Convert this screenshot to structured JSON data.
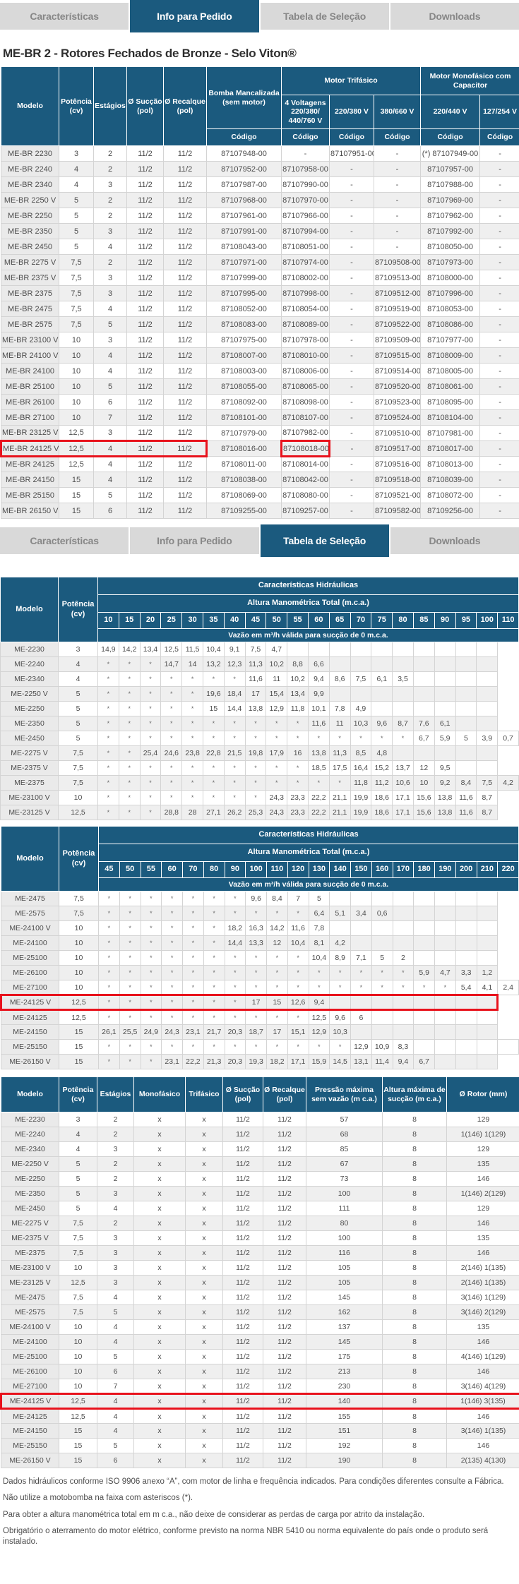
{
  "accent_color": "#1B5A7E",
  "highlight_color": "#E8121C",
  "tab_bar": {
    "tabs": [
      "Características",
      "Info para Pedido",
      "Tabela de Seleção",
      "Downloads"
    ]
  },
  "active_tab_top": "Info para Pedido",
  "active_tab_middle": "Tabela de Seleção",
  "page_title": "ME-BR 2 - Rotores Fechados de Bronze - Selo Viton®",
  "order_table": {
    "headers": {
      "modelo": "Modelo",
      "potencia": "Potência (cv)",
      "estagios": "Estágios",
      "succao": "Ø Sucção (pol)",
      "recalque": "Ø Recalque (pol)",
      "bomba": "Bomba Mancalizada (sem motor)",
      "trifasico": "Motor Trifásico",
      "monofasico": "Motor Monofásico com Capacitor",
      "v4": "4 Voltagens 220/380/ 440/760 V",
      "v220_380": "220/380 V",
      "v380_660": "380/660 V",
      "v220_440": "220/440 V",
      "v127_254": "127/254 V",
      "codigo": "Código"
    },
    "highlight_model": "ME-BR 24125 V",
    "rows": [
      [
        "ME-BR 2230",
        "3",
        "2",
        "11/2",
        "11/2",
        "87107948-00",
        "-",
        "87107951-00",
        "-",
        "(*) 87107949-00",
        "-"
      ],
      [
        "ME-BR 2240",
        "4",
        "2",
        "11/2",
        "11/2",
        "87107952-00",
        "87107958-00",
        "-",
        "-",
        "87107957-00",
        "-"
      ],
      [
        "ME-BR 2340",
        "4",
        "3",
        "11/2",
        "11/2",
        "87107987-00",
        "87107990-00",
        "-",
        "-",
        "87107988-00",
        "-"
      ],
      [
        "ME-BR 2250 V",
        "5",
        "2",
        "11/2",
        "11/2",
        "87107968-00",
        "87107970-00",
        "-",
        "-",
        "87107969-00",
        "-"
      ],
      [
        "ME-BR 2250",
        "5",
        "2",
        "11/2",
        "11/2",
        "87107961-00",
        "87107966-00",
        "-",
        "-",
        "87107962-00",
        "-"
      ],
      [
        "ME-BR 2350",
        "5",
        "3",
        "11/2",
        "11/2",
        "87107991-00",
        "87107994-00",
        "-",
        "-",
        "87107992-00",
        "-"
      ],
      [
        "ME-BR 2450",
        "5",
        "4",
        "11/2",
        "11/2",
        "87108043-00",
        "87108051-00",
        "-",
        "-",
        "87108050-00",
        "-"
      ],
      [
        "ME-BR 2275 V",
        "7,5",
        "2",
        "11/2",
        "11/2",
        "87107971-00",
        "87107974-00",
        "-",
        "87109508-00",
        "87107973-00",
        "-"
      ],
      [
        "ME-BR 2375 V",
        "7,5",
        "3",
        "11/2",
        "11/2",
        "87107999-00",
        "87108002-00",
        "-",
        "87109513-00",
        "87108000-00",
        "-"
      ],
      [
        "ME-BR 2375",
        "7,5",
        "3",
        "11/2",
        "11/2",
        "87107995-00",
        "87107998-00",
        "-",
        "87109512-00",
        "87107996-00",
        "-"
      ],
      [
        "ME-BR 2475",
        "7,5",
        "4",
        "11/2",
        "11/2",
        "87108052-00",
        "87108054-00",
        "-",
        "87109519-00",
        "87108053-00",
        "-"
      ],
      [
        "ME-BR 2575",
        "7,5",
        "5",
        "11/2",
        "11/2",
        "87108083-00",
        "87108089-00",
        "-",
        "87109522-00",
        "87108086-00",
        "-"
      ],
      [
        "ME-BR 23100 V",
        "10",
        "3",
        "11/2",
        "11/2",
        "87107975-00",
        "87107978-00",
        "-",
        "87109509-00",
        "87107977-00",
        "-"
      ],
      [
        "ME-BR 24100 V",
        "10",
        "4",
        "11/2",
        "11/2",
        "87108007-00",
        "87108010-00",
        "-",
        "87109515-00",
        "87108009-00",
        "-"
      ],
      [
        "ME-BR 24100",
        "10",
        "4",
        "11/2",
        "11/2",
        "87108003-00",
        "87108006-00",
        "-",
        "87109514-00",
        "87108005-00",
        "-"
      ],
      [
        "ME-BR 25100",
        "10",
        "5",
        "11/2",
        "11/2",
        "87108055-00",
        "87108065-00",
        "-",
        "87109520-00",
        "87108061-00",
        "-"
      ],
      [
        "ME-BR 26100",
        "10",
        "6",
        "11/2",
        "11/2",
        "87108092-00",
        "87108098-00",
        "-",
        "87109523-00",
        "87108095-00",
        "-"
      ],
      [
        "ME-BR 27100",
        "10",
        "7",
        "11/2",
        "11/2",
        "87108101-00",
        "87108107-00",
        "-",
        "87109524-00",
        "87108104-00",
        "-"
      ],
      [
        "ME-BR 23125 V",
        "12,5",
        "3",
        "11/2",
        "11/2",
        "87107979-00",
        "87107982-00",
        "-",
        "87109510-00",
        "87107981-00",
        "-"
      ],
      [
        "ME-BR 24125 V",
        "12,5",
        "4",
        "11/2",
        "11/2",
        "87108016-00",
        "87108018-00",
        "-",
        "87109517-00",
        "87108017-00",
        "-"
      ],
      [
        "ME-BR 24125",
        "12,5",
        "4",
        "11/2",
        "11/2",
        "87108011-00",
        "87108014-00",
        "-",
        "87109516-00",
        "87108013-00",
        "-"
      ],
      [
        "ME-BR 24150",
        "15",
        "4",
        "11/2",
        "11/2",
        "87108038-00",
        "87108042-00",
        "-",
        "87109518-00",
        "87108039-00",
        "-"
      ],
      [
        "ME-BR 25150",
        "15",
        "5",
        "11/2",
        "11/2",
        "87108069-00",
        "87108080-00",
        "-",
        "87109521-00",
        "87108072-00",
        "-"
      ],
      [
        "ME-BR 26150 V",
        "15",
        "6",
        "11/2",
        "11/2",
        "87109255-00",
        "87109257-00",
        "-",
        "87109582-00",
        "87109256-00",
        "-"
      ]
    ]
  },
  "sel1": {
    "col_modelo": "Modelo",
    "col_potencia": "Potência (cv)",
    "title": "Características Hidráulicas",
    "subtitle": "Altura Manométrica Total (m.c.a.)",
    "vazao_note": "Vazão em m³/h válida para sucção de 0 m.c.a.",
    "alturas": [
      "10",
      "15",
      "20",
      "25",
      "30",
      "35",
      "40",
      "45",
      "50",
      "55",
      "60",
      "65",
      "70",
      "75",
      "80",
      "85",
      "90",
      "95",
      "100",
      "110"
    ],
    "rows": [
      [
        "ME-2230",
        "3",
        "14,9",
        "14,2",
        "13,4",
        "12,5",
        "11,5",
        "10,4",
        "9,1",
        "7,5",
        "4,7",
        "",
        "",
        "",
        "",
        "",
        "",
        "",
        "",
        "",
        ""
      ],
      [
        "ME-2240",
        "4",
        "*",
        "*",
        "*",
        "14,7",
        "14",
        "13,2",
        "12,3",
        "11,3",
        "10,2",
        "8,8",
        "6,6",
        "",
        "",
        "",
        "",
        "",
        "",
        "",
        ""
      ],
      [
        "ME-2340",
        "4",
        "*",
        "*",
        "*",
        "*",
        "*",
        "*",
        "*",
        "11,6",
        "11",
        "10,2",
        "9,4",
        "8,6",
        "7,5",
        "6,1",
        "3,5",
        "",
        "",
        "",
        ""
      ],
      [
        "ME-2250 V",
        "5",
        "*",
        "*",
        "*",
        "*",
        "*",
        "19,6",
        "18,4",
        "17",
        "15,4",
        "13,4",
        "9,9",
        "",
        "",
        "",
        "",
        "",
        "",
        "",
        ""
      ],
      [
        "ME-2250",
        "5",
        "*",
        "*",
        "*",
        "*",
        "*",
        "15",
        "14,4",
        "13,8",
        "12,9",
        "11,8",
        "10,1",
        "7,8",
        "4,9",
        "",
        "",
        "",
        "",
        "",
        ""
      ],
      [
        "ME-2350",
        "5",
        "*",
        "*",
        "*",
        "*",
        "*",
        "*",
        "*",
        "*",
        "*",
        "*",
        "11,6",
        "11",
        "10,3",
        "9,6",
        "8,7",
        "7,6",
        "6,1",
        "",
        ""
      ],
      [
        "ME-2450",
        "5",
        "*",
        "*",
        "*",
        "*",
        "*",
        "*",
        "*",
        "*",
        "*",
        "*",
        "*",
        "*",
        "*",
        "*",
        "*",
        "6,7",
        "5,9",
        "5",
        "3,9",
        "0,7"
      ],
      [
        "ME-2275 V",
        "7,5",
        "*",
        "*",
        "25,4",
        "24,6",
        "23,8",
        "22,8",
        "21,5",
        "19,8",
        "17,9",
        "16",
        "13,8",
        "11,3",
        "8,5",
        "4,8",
        "",
        "",
        "",
        "",
        ""
      ],
      [
        "ME-2375 V",
        "7,5",
        "*",
        "*",
        "*",
        "*",
        "*",
        "*",
        "*",
        "*",
        "*",
        "*",
        "18,5",
        "17,5",
        "16,4",
        "15,2",
        "13,7",
        "12",
        "9,5",
        "",
        ""
      ],
      [
        "ME-2375",
        "7,5",
        "*",
        "*",
        "*",
        "*",
        "*",
        "*",
        "*",
        "*",
        "*",
        "*",
        "*",
        "*",
        "11,8",
        "11,2",
        "10,6",
        "10",
        "9,2",
        "8,4",
        "7,5",
        "4,2"
      ],
      [
        "ME-23100 V",
        "10",
        "*",
        "*",
        "*",
        "*",
        "*",
        "*",
        "*",
        "*",
        "24,3",
        "23,3",
        "22,2",
        "21,1",
        "19,9",
        "18,6",
        "17,1",
        "15,6",
        "13,8",
        "11,6",
        "8,7"
      ],
      [
        "ME-23125 V",
        "12,5",
        "*",
        "*",
        "*",
        "28,8",
        "28",
        "27,1",
        "26,2",
        "25,3",
        "24,3",
        "23,3",
        "22,2",
        "21,1",
        "19,9",
        "18,6",
        "17,1",
        "15,6",
        "13,8",
        "11,6",
        "8,7"
      ]
    ]
  },
  "sel2": {
    "col_modelo": "Modelo",
    "col_potencia": "Potência (cv)",
    "title": "Características Hidráulicas",
    "subtitle": "Altura Manométrica Total (m.c.a.)",
    "vazao_note": "Vazão em m³/h válida para sucção de 0 m.c.a.",
    "alturas": [
      "45",
      "50",
      "55",
      "60",
      "70",
      "80",
      "90",
      "100",
      "110",
      "120",
      "130",
      "140",
      "150",
      "160",
      "170",
      "180",
      "190",
      "200",
      "210",
      "220"
    ],
    "highlight_model": "ME-24125 V",
    "rows": [
      [
        "ME-2475",
        "7,5",
        "*",
        "*",
        "*",
        "*",
        "*",
        "*",
        "*",
        "9,6",
        "8,4",
        "7",
        "5",
        "",
        "",
        "",
        "",
        "",
        "",
        "",
        ""
      ],
      [
        "ME-2575",
        "7,5",
        "*",
        "*",
        "*",
        "*",
        "*",
        "*",
        "*",
        "*",
        "*",
        "*",
        "6,4",
        "5,1",
        "3,4",
        "0,6",
        "",
        "",
        "",
        "",
        ""
      ],
      [
        "ME-24100 V",
        "10",
        "*",
        "*",
        "*",
        "*",
        "*",
        "*",
        "18,2",
        "16,3",
        "14,2",
        "11,6",
        "7,8",
        "",
        "",
        "",
        "",
        "",
        "",
        "",
        ""
      ],
      [
        "ME-24100",
        "10",
        "*",
        "*",
        "*",
        "*",
        "*",
        "*",
        "14,4",
        "13,3",
        "12",
        "10,4",
        "8,1",
        "4,2",
        "",
        "",
        "",
        "",
        "",
        "",
        ""
      ],
      [
        "ME-25100",
        "10",
        "*",
        "*",
        "*",
        "*",
        "*",
        "*",
        "*",
        "*",
        "*",
        "*",
        "10,4",
        "8,9",
        "7,1",
        "5",
        "2",
        "",
        "",
        "",
        ""
      ],
      [
        "ME-26100",
        "10",
        "*",
        "*",
        "*",
        "*",
        "*",
        "*",
        "*",
        "*",
        "*",
        "*",
        "*",
        "*",
        "*",
        "*",
        "*",
        "5,9",
        "4,7",
        "3,3",
        "1,2"
      ],
      [
        "ME-27100",
        "10",
        "*",
        "*",
        "*",
        "*",
        "*",
        "*",
        "*",
        "*",
        "*",
        "*",
        "*",
        "*",
        "*",
        "*",
        "*",
        "*",
        "*",
        "5,4",
        "4,1",
        "2,4"
      ],
      [
        "ME-24125 V",
        "12,5",
        "*",
        "*",
        "*",
        "*",
        "*",
        "*",
        "*",
        "17",
        "15",
        "12,6",
        "9,4",
        "",
        "",
        "",
        "",
        "",
        "",
        "",
        ""
      ],
      [
        "ME-24125",
        "12,5",
        "*",
        "*",
        "*",
        "*",
        "*",
        "*",
        "*",
        "*",
        "*",
        "*",
        "12,5",
        "9,6",
        "6",
        "",
        "",
        "",
        "",
        "",
        ""
      ],
      [
        "ME-24150",
        "15",
        "26,1",
        "25,5",
        "24,9",
        "24,3",
        "23,1",
        "21,7",
        "20,3",
        "18,7",
        "17",
        "15,1",
        "12,9",
        "10,3",
        "",
        "",
        "",
        "",
        "",
        "",
        ""
      ],
      [
        "ME-25150",
        "15",
        "*",
        "*",
        "*",
        "*",
        "*",
        "*",
        "*",
        "*",
        "*",
        "*",
        "*",
        "*",
        "12,9",
        "10,9",
        "8,3",
        "",
        "",
        "",
        "",
        ""
      ],
      [
        "ME-26150 V",
        "15",
        "*",
        "*",
        "*",
        "23,1",
        "22,2",
        "21,3",
        "20,3",
        "19,3",
        "18,2",
        "17,1",
        "15,9",
        "14,5",
        "13,1",
        "11,4",
        "9,4",
        "6,7",
        "",
        "",
        ""
      ]
    ]
  },
  "specs_table": {
    "headers": [
      "Modelo",
      "Potência (cv)",
      "Estágios",
      "Monofásico",
      "Trifásico",
      "Ø Sucção (pol)",
      "Ø Recalque (pol)",
      "Pressão máxima sem vazão (m c.a.)",
      "Altura máxima de sucção (m c.a.)",
      "Ø Rotor (mm)"
    ],
    "highlight_model": "ME-24125 V",
    "rows": [
      [
        "ME-2230",
        "3",
        "2",
        "x",
        "x",
        "11/2",
        "11/2",
        "57",
        "8",
        "129"
      ],
      [
        "ME-2240",
        "4",
        "2",
        "x",
        "x",
        "11/2",
        "11/2",
        "68",
        "8",
        "1(146) 1(129)"
      ],
      [
        "ME-2340",
        "4",
        "3",
        "x",
        "x",
        "11/2",
        "11/2",
        "85",
        "8",
        "129"
      ],
      [
        "ME-2250 V",
        "5",
        "2",
        "x",
        "x",
        "11/2",
        "11/2",
        "67",
        "8",
        "135"
      ],
      [
        "ME-2250",
        "5",
        "2",
        "x",
        "x",
        "11/2",
        "11/2",
        "73",
        "8",
        "146"
      ],
      [
        "ME-2350",
        "5",
        "3",
        "x",
        "x",
        "11/2",
        "11/2",
        "100",
        "8",
        "1(146) 2(129)"
      ],
      [
        "ME-2450",
        "5",
        "4",
        "x",
        "x",
        "11/2",
        "11/2",
        "111",
        "8",
        "129"
      ],
      [
        "ME-2275 V",
        "7,5",
        "2",
        "x",
        "x",
        "11/2",
        "11/2",
        "80",
        "8",
        "146"
      ],
      [
        "ME-2375 V",
        "7,5",
        "3",
        "x",
        "x",
        "11/2",
        "11/2",
        "100",
        "8",
        "135"
      ],
      [
        "ME-2375",
        "7,5",
        "3",
        "x",
        "x",
        "11/2",
        "11/2",
        "116",
        "8",
        "146"
      ],
      [
        "ME-23100 V",
        "10",
        "3",
        "x",
        "x",
        "11/2",
        "11/2",
        "105",
        "8",
        "2(146) 1(135)"
      ],
      [
        "ME-23125 V",
        "12,5",
        "3",
        "x",
        "x",
        "11/2",
        "11/2",
        "105",
        "8",
        "2(146) 1(135)"
      ],
      [
        "ME-2475",
        "7,5",
        "4",
        "x",
        "x",
        "11/2",
        "11/2",
        "145",
        "8",
        "3(146) 1(129)"
      ],
      [
        "ME-2575",
        "7,5",
        "5",
        "x",
        "x",
        "11/2",
        "11/2",
        "162",
        "8",
        "3(146) 2(129)"
      ],
      [
        "ME-24100 V",
        "10",
        "4",
        "x",
        "x",
        "11/2",
        "11/2",
        "137",
        "8",
        "135"
      ],
      [
        "ME-24100",
        "10",
        "4",
        "x",
        "x",
        "11/2",
        "11/2",
        "145",
        "8",
        "146"
      ],
      [
        "ME-25100",
        "10",
        "5",
        "x",
        "x",
        "11/2",
        "11/2",
        "175",
        "8",
        "4(146) 1(129)"
      ],
      [
        "ME-26100",
        "10",
        "6",
        "x",
        "x",
        "11/2",
        "11/2",
        "213",
        "8",
        "146"
      ],
      [
        "ME-27100",
        "10",
        "7",
        "x",
        "x",
        "11/2",
        "11/2",
        "230",
        "8",
        "3(146) 4(129)"
      ],
      [
        "ME-24125 V",
        "12,5",
        "4",
        "x",
        "x",
        "11/2",
        "11/2",
        "140",
        "8",
        "1(146) 3(135)"
      ],
      [
        "ME-24125",
        "12,5",
        "4",
        "x",
        "x",
        "11/2",
        "11/2",
        "155",
        "8",
        "146"
      ],
      [
        "ME-24150",
        "15",
        "4",
        "x",
        "x",
        "11/2",
        "11/2",
        "151",
        "8",
        "3(146) 1(135)"
      ],
      [
        "ME-25150",
        "15",
        "5",
        "x",
        "x",
        "11/2",
        "11/2",
        "192",
        "8",
        "146"
      ],
      [
        "ME-26150 V",
        "15",
        "6",
        "x",
        "x",
        "11/2",
        "11/2",
        "190",
        "8",
        "2(135) 4(130)"
      ]
    ]
  },
  "footnotes": [
    "Dados hidráulicos conforme ISO 9906 anexo “A”, com motor de linha e frequência indicados. Para condições diferentes consulte a Fábrica.",
    "Não utilize a motobomba na faixa com asteriscos (*).",
    "Para obter a altura manométrica total em m c.a., não deixe de considerar as perdas de carga por atrito da instalação.",
    "Obrigatório o aterramento do motor elétrico, conforme previsto na norma NBR 5410 ou norma equivalente do país onde o produto será instalado."
  ]
}
